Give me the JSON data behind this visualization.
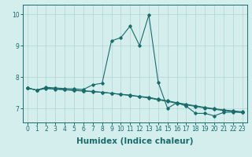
{
  "xlabel": "Humidex (Indice chaleur)",
  "ylabel": "",
  "bg_color": "#d4eeee",
  "line_color": "#1a6b6b",
  "grid_color": "#b8d8d8",
  "xlim": [
    -0.5,
    23.5
  ],
  "ylim": [
    6.55,
    10.3
  ],
  "yticks": [
    7,
    8,
    9,
    10
  ],
  "xticks": [
    0,
    1,
    2,
    3,
    4,
    5,
    6,
    7,
    8,
    9,
    10,
    11,
    12,
    13,
    14,
    15,
    16,
    17,
    18,
    19,
    20,
    21,
    22,
    23
  ],
  "line1_x": [
    0,
    1,
    2,
    3,
    4,
    5,
    6,
    7,
    8,
    9,
    10,
    11,
    12,
    13,
    14,
    15,
    16,
    17,
    18,
    19,
    20,
    21,
    22,
    23
  ],
  "line1_y": [
    7.65,
    7.58,
    7.67,
    7.65,
    7.63,
    7.62,
    7.6,
    7.75,
    7.8,
    9.15,
    9.25,
    9.62,
    9.0,
    9.97,
    7.83,
    7.0,
    7.18,
    7.07,
    6.84,
    6.84,
    6.76,
    6.87,
    6.88,
    6.87
  ],
  "line2_x": [
    0,
    1,
    2,
    3,
    4,
    5,
    6,
    7,
    8,
    9,
    10,
    11,
    12,
    13,
    14,
    15,
    16,
    17,
    18,
    19,
    20,
    21,
    22,
    23
  ],
  "line2_y": [
    7.65,
    7.58,
    7.63,
    7.61,
    7.59,
    7.57,
    7.55,
    7.53,
    7.51,
    7.48,
    7.44,
    7.41,
    7.37,
    7.33,
    7.27,
    7.22,
    7.16,
    7.11,
    7.06,
    7.01,
    6.97,
    6.93,
    6.9,
    6.87
  ],
  "line3_x": [
    0,
    1,
    2,
    3,
    4,
    5,
    6,
    7,
    8,
    9,
    10,
    11,
    12,
    13,
    14,
    15,
    16,
    17,
    18,
    19,
    20,
    21,
    22,
    23
  ],
  "line3_y": [
    7.65,
    7.58,
    7.64,
    7.62,
    7.6,
    7.58,
    7.56,
    7.54,
    7.51,
    7.48,
    7.45,
    7.42,
    7.38,
    7.35,
    7.29,
    7.24,
    7.18,
    7.13,
    7.08,
    7.03,
    6.99,
    6.95,
    6.92,
    6.89
  ],
  "tick_fontsize": 5.5,
  "label_fontsize": 7.5
}
